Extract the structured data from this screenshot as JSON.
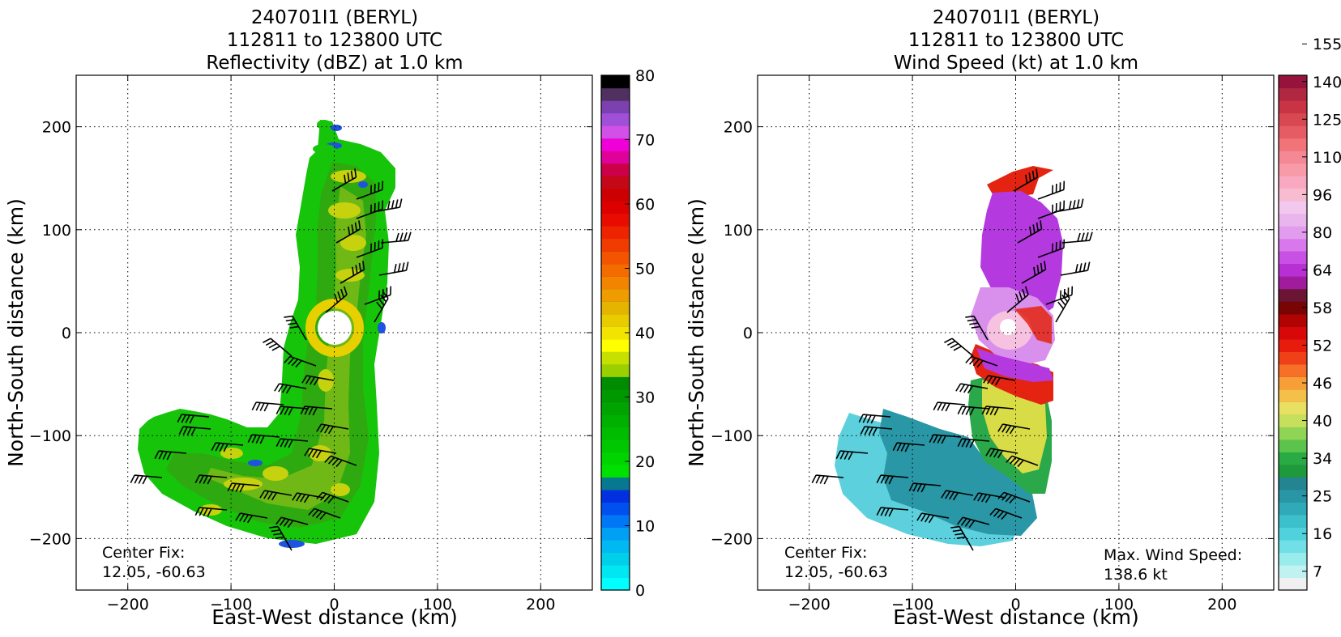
{
  "chart_data": [
    {
      "type": "heatmap",
      "title_lines": [
        "240701I1 (BERYL)",
        "112811 to 123800 UTC",
        "Reflectivity (dBZ) at 1.0 km"
      ],
      "xlabel": "East-West distance (km)",
      "ylabel": "North-South distance (km)",
      "xlim": [
        -250,
        250
      ],
      "ylim": [
        -250,
        250
      ],
      "xticks": [
        -200,
        -100,
        0,
        100,
        200
      ],
      "yticks": [
        -200,
        -100,
        0,
        100,
        200
      ],
      "xtick_labels": [
        "−200",
        "−100",
        "0",
        "100",
        "200"
      ],
      "ytick_labels": [
        "−200",
        "−100",
        "0",
        "100",
        "200"
      ],
      "grid": true,
      "annotation_lines": [
        "Center Fix:",
        "12.05, -60.63"
      ],
      "colorbar": {
        "min": 0,
        "max": 80,
        "tick_values": [
          0,
          10,
          20,
          30,
          40,
          50,
          60,
          70,
          80
        ],
        "tick_labels": [
          "0",
          "10",
          "20",
          "30",
          "40",
          "50",
          "60",
          "70",
          "80"
        ],
        "colors": [
          "#00ffff",
          "#00e6f2",
          "#00cfea",
          "#00b8f2",
          "#00a0f5",
          "#0078f5",
          "#0050f0",
          "#0030e0",
          "#087890",
          "#00e000",
          "#00d400",
          "#00c800",
          "#00bc00",
          "#00b000",
          "#00a400",
          "#009800",
          "#008c00",
          "#9ad000",
          "#c8e000",
          "#ffff00",
          "#f2e400",
          "#e8cc00",
          "#e4b400",
          "#ee9c00",
          "#f28400",
          "#f46c00",
          "#f45400",
          "#f03c00",
          "#ee2400",
          "#e80c00",
          "#dc0000",
          "#cc0000",
          "#c40818",
          "#cc0048",
          "#e0009a",
          "#f000d8",
          "#d050e8",
          "#a050d8",
          "#7c40b0",
          "#503060",
          "#000000"
        ]
      },
      "feature_colors": {
        "outer": "#16c40a",
        "mid": "#2eaa10",
        "inner": "#70b816",
        "core": "#c6d20e",
        "hot": "#e8d000",
        "low": "#1d53e0"
      }
    },
    {
      "type": "heatmap",
      "title_lines": [
        "240701I1 (BERYL)",
        "112811 to 123800 UTC",
        "Wind Speed (kt) at 1.0 km"
      ],
      "xlabel": "East-West distance (km)",
      "ylabel": "North-South distance (km)",
      "xlim": [
        -250,
        250
      ],
      "ylim": [
        -250,
        250
      ],
      "xticks": [
        -200,
        -100,
        0,
        100,
        200
      ],
      "yticks": [
        -200,
        -100,
        0,
        100,
        200
      ],
      "xtick_labels": [
        "−200",
        "−100",
        "0",
        "100",
        "200"
      ],
      "ytick_labels": [
        "−200",
        "−100",
        "0",
        "100",
        "200"
      ],
      "grid": true,
      "annotation_lines": [
        "Center Fix:",
        "12.05, -60.63"
      ],
      "annotation_right_lines": [
        "Max. Wind Speed:",
        "138.6 kt"
      ],
      "colorbar": {
        "tick_labels": [
          "7",
          "16",
          "25",
          "34",
          "40",
          "46",
          "52",
          "58",
          "64",
          "80",
          "96",
          "110",
          "125",
          "140",
          "155"
        ],
        "colors": [
          "#f0f0f0",
          "#c0f2f2",
          "#98ecec",
          "#70e0e6",
          "#50d2dc",
          "#3cc0cc",
          "#30aab8",
          "#2896a4",
          "#248492",
          "#1e9a3c",
          "#2aaa44",
          "#5cc44c",
          "#90d456",
          "#c6e05e",
          "#e8e060",
          "#f4c04a",
          "#f89e38",
          "#f87028",
          "#f04018",
          "#e81c0c",
          "#d80808",
          "#b00404",
          "#780404",
          "#6c1434",
          "#a01c9c",
          "#b830d4",
          "#c850e4",
          "#d878ec",
          "#e29cee",
          "#eab4ec",
          "#f2c8ee",
          "#f8bcd0",
          "#f8a8c0",
          "#f89aa8",
          "#f48894",
          "#f07478",
          "#e65c64",
          "#d84850",
          "#c83444",
          "#b02840",
          "#96143c"
        ]
      },
      "feature_colors": {
        "north": "#b43ae0",
        "band": "#d890ec",
        "eye": "#f7c2e0",
        "red": "#e42410",
        "yellow": "#d8dc46",
        "green": "#2aa84a",
        "teal": "#2a97a6",
        "light": "#5cd0dc"
      }
    }
  ]
}
